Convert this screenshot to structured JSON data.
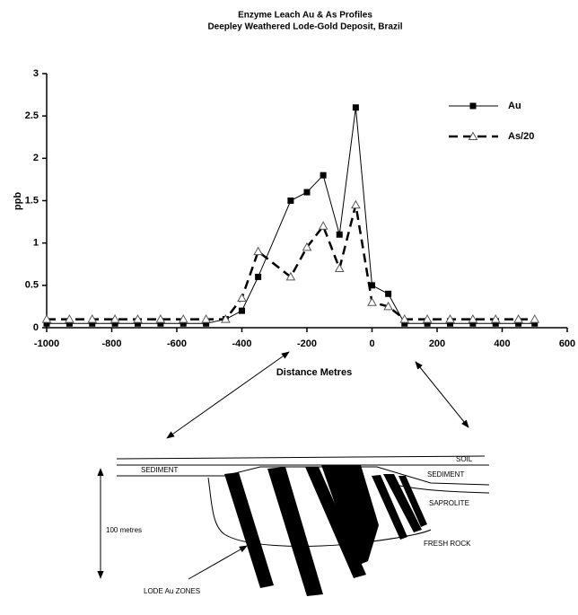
{
  "chart_data": {
    "type": "line",
    "title": "Enzyme Leach Au & As Profiles",
    "subtitle": "Deepley Weathered Lode-Gold Deposit, Brazil",
    "xlabel": "Distance Metres",
    "ylabel": "ppb",
    "xlim": [
      -1000,
      600
    ],
    "xticks": [
      -1000,
      -800,
      -600,
      -400,
      -200,
      0,
      200,
      400,
      600
    ],
    "ylim": [
      0,
      3
    ],
    "yticks": [
      0,
      0.5,
      1,
      1.5,
      2,
      2.5,
      3
    ],
    "legend": "upper right",
    "series": [
      {
        "name": "Au",
        "color": "#000000",
        "marker": "square",
        "linestyle": "solid",
        "x": [
          -1000,
          -930,
          -860,
          -790,
          -720,
          -650,
          -580,
          -510,
          -450,
          -400,
          -350,
          -250,
          -200,
          -150,
          -100,
          -50,
          0,
          50,
          100,
          170,
          240,
          310,
          380,
          450,
          500
        ],
        "values": [
          0.05,
          0.05,
          0.05,
          0.05,
          0.05,
          0.05,
          0.05,
          0.05,
          0.1,
          0.2,
          0.6,
          1.5,
          1.6,
          1.8,
          1.1,
          2.6,
          0.5,
          0.4,
          0.05,
          0.05,
          0.05,
          0.05,
          0.05,
          0.05,
          0.05
        ]
      },
      {
        "name": "As/20",
        "color": "#000000",
        "marker": "triangle",
        "linestyle": "dashed",
        "x": [
          -1000,
          -930,
          -860,
          -790,
          -720,
          -650,
          -580,
          -510,
          -450,
          -400,
          -350,
          -250,
          -200,
          -150,
          -100,
          -50,
          0,
          50,
          100,
          170,
          240,
          310,
          380,
          450,
          500
        ],
        "values": [
          0.1,
          0.1,
          0.1,
          0.1,
          0.1,
          0.1,
          0.1,
          0.1,
          0.1,
          0.35,
          0.9,
          0.6,
          0.95,
          1.2,
          0.7,
          1.45,
          0.3,
          0.25,
          0.1,
          0.1,
          0.1,
          0.1,
          0.1,
          0.1,
          0.1
        ]
      }
    ]
  },
  "diagram": {
    "labels": [
      "SOIL",
      "SEDIMENT",
      "SEDIMENT",
      "SAPROLITE",
      "100 metres",
      "FRESH ROCK",
      "LODE Au ZONES"
    ]
  }
}
